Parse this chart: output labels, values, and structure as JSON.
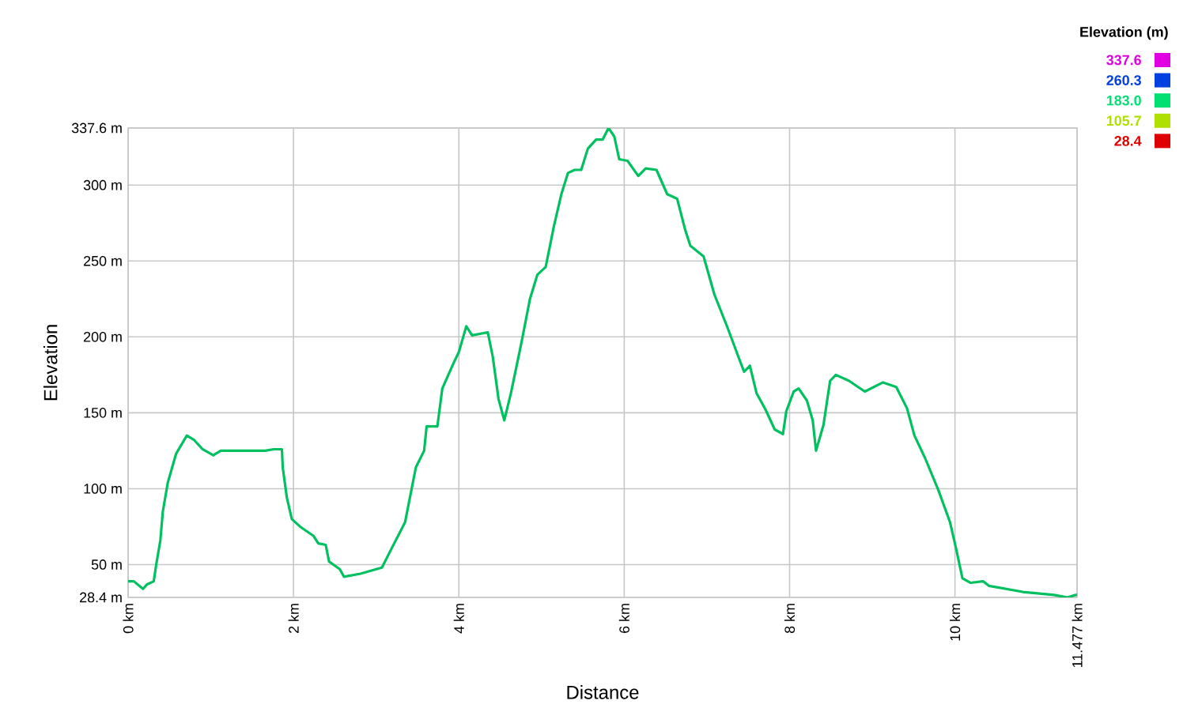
{
  "chart_data": {
    "type": "line",
    "xlabel": "Distance",
    "ylabel": "Elevation",
    "clabel": "Elevation (m)",
    "x": [
      0,
      0.07,
      0.18,
      0.23,
      0.31,
      0.34,
      0.39,
      0.42,
      0.48,
      0.58,
      0.71,
      0.8,
      0.9,
      1.03,
      1.12,
      1.47,
      1.66,
      1.76,
      1.86,
      1.87,
      1.92,
      1.98,
      2.08,
      2.24,
      2.3,
      2.39,
      2.43,
      2.56,
      2.61,
      2.81,
      3.07,
      3.19,
      3.35,
      3.48,
      3.58,
      3.61,
      3.74,
      3.8,
      3.93,
      4.0,
      4.09,
      4.16,
      4.35,
      4.41,
      4.48,
      4.55,
      4.63,
      4.76,
      4.86,
      4.95,
      5.05,
      5.15,
      5.24,
      5.32,
      5.4,
      5.48,
      5.56,
      5.66,
      5.74,
      5.81,
      5.88,
      5.94,
      6.04,
      6.17,
      6.26,
      6.39,
      6.52,
      6.64,
      6.74,
      6.8,
      6.96,
      7.09,
      7.25,
      7.38,
      7.45,
      7.52,
      7.6,
      7.71,
      7.82,
      7.92,
      7.96,
      8.05,
      8.11,
      8.21,
      8.28,
      8.32,
      8.41,
      8.49,
      8.56,
      8.72,
      8.91,
      9.13,
      9.29,
      9.42,
      9.51,
      9.64,
      9.8,
      9.94,
      10.02,
      10.09,
      10.19,
      10.34,
      10.41,
      10.82,
      11.2,
      11.36,
      11.46,
      11.477
    ],
    "values": [
      39,
      39,
      34,
      37,
      39,
      50,
      66,
      85,
      104,
      123,
      135,
      132,
      126,
      122,
      125,
      125,
      125,
      126,
      126,
      114,
      94,
      80,
      75,
      69,
      64,
      63,
      52,
      47,
      42,
      44,
      48,
      61,
      78,
      114,
      125,
      141,
      141,
      166,
      182,
      190,
      207,
      201,
      203,
      187,
      159,
      145,
      163,
      197,
      225,
      241,
      246,
      273,
      294,
      308,
      310,
      310,
      324,
      330,
      330,
      337.6,
      332,
      317,
      316,
      306,
      311,
      310,
      294,
      291,
      270,
      260,
      253,
      228,
      206,
      187,
      177,
      181,
      163,
      152,
      139,
      136,
      151,
      164,
      166,
      158,
      145,
      125,
      142,
      171,
      175,
      171,
      164,
      170,
      167,
      153,
      135,
      120,
      99,
      78,
      59,
      41,
      38,
      39,
      36,
      32,
      30,
      28.4,
      30,
      30
    ],
    "xlim": [
      0,
      11.477
    ],
    "xticks": [
      {
        "value": 0,
        "label": "0 km"
      },
      {
        "value": 2,
        "label": "2 km"
      },
      {
        "value": 4,
        "label": "4 km"
      },
      {
        "value": 6,
        "label": "6 km"
      },
      {
        "value": 8,
        "label": "8 km"
      },
      {
        "value": 10,
        "label": "10 km"
      },
      {
        "value": 11.477,
        "label": "11.477 km"
      }
    ],
    "ylim": [
      28.4,
      337.6
    ],
    "yticks": [
      {
        "value": 28.4,
        "label": "28.4 m"
      },
      {
        "value": 50,
        "label": "50 m"
      },
      {
        "value": 100,
        "label": "100 m"
      },
      {
        "value": 150,
        "label": "150 m"
      },
      {
        "value": 200,
        "label": "200 m"
      },
      {
        "value": 250,
        "label": "250 m"
      },
      {
        "value": 300,
        "label": "300 m"
      },
      {
        "value": 337.6,
        "label": "337.6 m"
      }
    ],
    "clim": [
      28.4,
      337.6
    ],
    "cticks": [
      {
        "value": 337.6,
        "label": "337.6"
      },
      {
        "value": 260.3,
        "label": "260.3"
      },
      {
        "value": 183.0,
        "label": "183.0"
      },
      {
        "value": 105.7,
        "label": "105.7"
      },
      {
        "value": 28.4,
        "label": "28.4"
      }
    ],
    "color": "#00c060",
    "grid": true,
    "marker": "none",
    "line_style": "solid"
  }
}
